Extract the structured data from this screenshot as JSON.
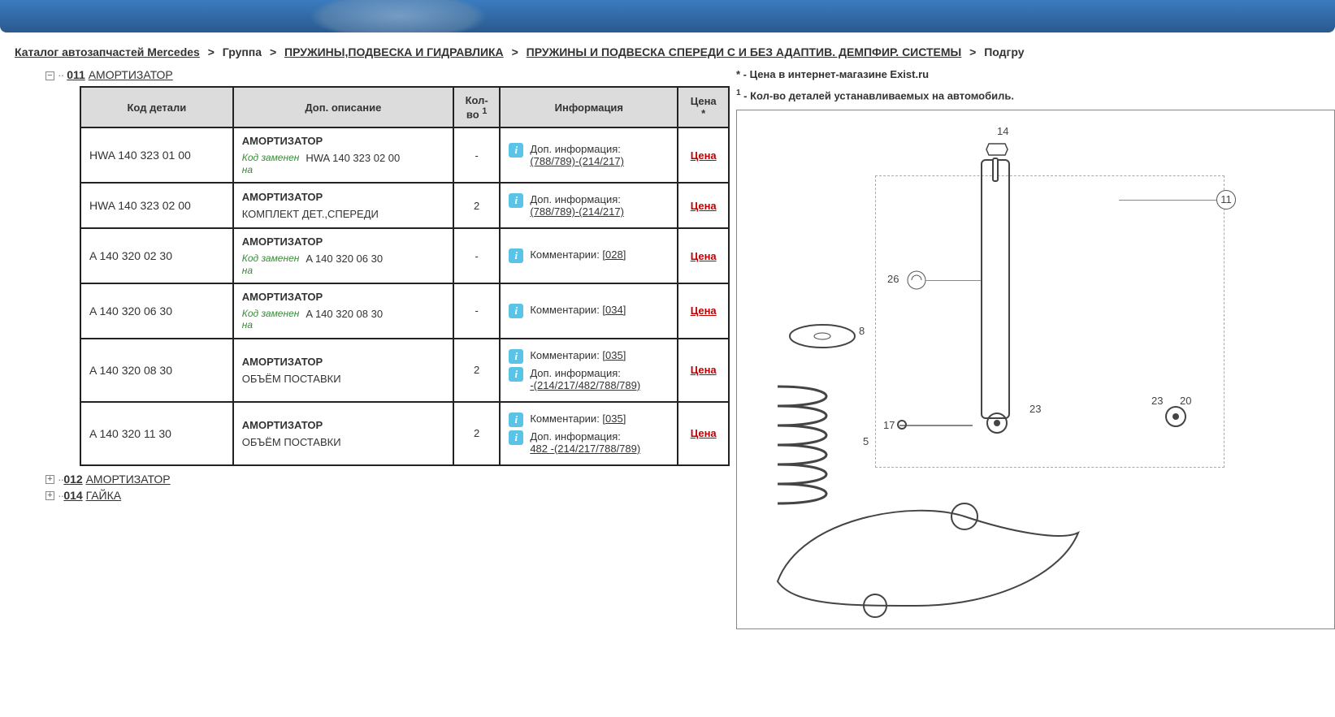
{
  "breadcrumb": {
    "root": "Каталог автозапчастей Mercedes",
    "group_lbl": "Группа",
    "group": "ПРУЖИНЫ,ПОДВЕСКА И ГИДРАВЛИКА",
    "sub": "ПРУЖИНЫ И ПОДВЕСКА СПЕРЕДИ С И БЕЗ АДАПТИВ. ДЕМПФИР. СИСТЕМЫ",
    "tail": "Подгру"
  },
  "tree": {
    "open": {
      "num": "011",
      "label": "АМОРТИЗАТОР"
    },
    "closed": [
      {
        "num": "012",
        "label": "АМОРТИЗАТОР"
      },
      {
        "num": "014",
        "label": "ГАЙКА"
      }
    ]
  },
  "headers": {
    "code": "Код детали",
    "desc": "Доп. описание",
    "qty_l1": "Кол-",
    "qty_l2": "во",
    "info": "Информация",
    "price_l1": "Цена",
    "price_l2": "*"
  },
  "labels": {
    "replaced": "Код заменен на",
    "addinfo": "Доп. информация:",
    "comments": "Комментарии:",
    "price": "Цена"
  },
  "rows": [
    {
      "code": "HWA 140 323 01 00",
      "title": "АМОРТИЗАТОР",
      "replaced_by": "HWA 140 323 02 00",
      "qty": "-",
      "info": [
        {
          "type": "add",
          "val": "(788/789)-(214/217)"
        }
      ]
    },
    {
      "code": "HWA 140 323 02 00",
      "title": "АМОРТИЗАТОР",
      "subdesc": "КОМПЛЕКТ ДЕТ.,СПЕРЕДИ",
      "qty": "2",
      "info": [
        {
          "type": "add",
          "val": "(788/789)-(214/217)"
        }
      ]
    },
    {
      "code": "A  140 320 02 30",
      "title": "АМОРТИЗАТОР",
      "replaced_by": "A  140 320 06 30",
      "qty": "-",
      "info": [
        {
          "type": "comment",
          "val": "[028]"
        }
      ]
    },
    {
      "code": "A  140 320 06 30",
      "title": "АМОРТИЗАТОР",
      "replaced_by": "A  140 320 08 30",
      "qty": "-",
      "info": [
        {
          "type": "comment",
          "val": "[034]"
        }
      ]
    },
    {
      "code": "A  140 320 08 30",
      "title": "АМОРТИЗАТОР",
      "subdesc": "ОБЪЁМ ПОСТАВКИ",
      "qty": "2",
      "info": [
        {
          "type": "comment",
          "val": "[035]"
        },
        {
          "type": "add",
          "val": "-(214/217/482/788/789)"
        }
      ]
    },
    {
      "code": "A  140 320 11 30",
      "title": "АМОРТИЗАТОР",
      "subdesc": "ОБЪЁМ ПОСТАВКИ",
      "qty": "2",
      "info": [
        {
          "type": "comment",
          "val": "[035]"
        },
        {
          "type": "add",
          "val": "482 -(214/217/788/789)"
        }
      ]
    }
  ],
  "notes": {
    "n1": "* - Цена в интернет-магазине Exist.ru",
    "n2_pre": "1",
    "n2": " - Кол-во деталей устанавливаемых на автомобиль."
  },
  "diagram": {
    "nums": [
      "14",
      "11",
      "26",
      "8",
      "17",
      "5",
      "23",
      "20",
      "23"
    ],
    "colors": {
      "line": "#666",
      "circle": "#555"
    }
  },
  "colors": {
    "header_bg": "#dcdcdc",
    "border": "#222222",
    "price": "#c00000",
    "replaced": "#3a8a3a",
    "info_icon": "#59c3e8",
    "banner_top": "#3a7bbf",
    "banner_bot": "#2a5a8f"
  }
}
